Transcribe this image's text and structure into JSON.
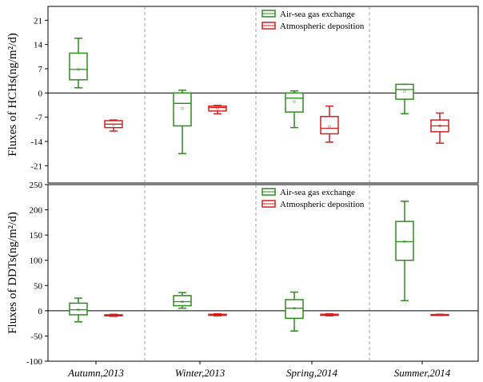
{
  "chart_data": [
    {
      "type": "box",
      "ylabel": "Fluxes of HCHs(ng/m²/d)",
      "ylim": [
        -26,
        25
      ],
      "yticks": [
        21,
        14,
        7,
        0,
        -7,
        -14,
        -21
      ],
      "categories": [
        "Autumn,2013",
        "Winter,2013",
        "Spring,2014",
        "Summer,2014"
      ],
      "legend_position": "top-center",
      "series": [
        {
          "name": "Air-sea gas exchange",
          "color": "#2e8b1e",
          "boxes": [
            {
              "whislo": 1.5,
              "q1": 3.8,
              "med": 6.8,
              "mean": 6.8,
              "q3": 11.5,
              "whishi": 15.8
            },
            {
              "whislo": -17.5,
              "q1": -9.5,
              "med": -3.0,
              "mean": -4.5,
              "q3": 0.0,
              "whishi": 0.8
            },
            {
              "whislo": -10.0,
              "q1": -5.5,
              "med": -1.5,
              "mean": -2.5,
              "q3": 0.0,
              "whishi": 0.6
            },
            {
              "whislo": -6.0,
              "q1": -1.8,
              "med": 1.0,
              "mean": 0.5,
              "q3": 2.5,
              "whishi": 2.5
            }
          ]
        },
        {
          "name": "Atmospheric deposition",
          "color": "#d41e1e",
          "boxes": [
            {
              "whislo": -11.0,
              "q1": -10.0,
              "med": -9.0,
              "mean": -9.2,
              "q3": -8.0,
              "whishi": -7.8
            },
            {
              "whislo": -6.0,
              "q1": -5.2,
              "med": -4.2,
              "mean": -4.4,
              "q3": -3.8,
              "whishi": -3.6
            },
            {
              "whislo": -14.2,
              "q1": -11.8,
              "med": -10.2,
              "mean": -9.8,
              "q3": -6.8,
              "whishi": -3.8
            },
            {
              "whislo": -14.5,
              "q1": -11.2,
              "med": -9.5,
              "mean": -9.5,
              "q3": -7.8,
              "whishi": -5.8
            }
          ]
        }
      ]
    },
    {
      "type": "box",
      "ylabel": "Fluxes of DDTs(ng/m²/d)",
      "ylim": [
        -100,
        250
      ],
      "yticks": [
        250,
        200,
        150,
        100,
        50,
        0,
        -50,
        -100
      ],
      "categories": [
        "Autumn,2013",
        "Winter,2013",
        "Spring,2014",
        "Summer,2014"
      ],
      "legend_position": "top-center",
      "series": [
        {
          "name": "Air-sea gas exchange",
          "color": "#2e8b1e",
          "boxes": [
            {
              "whislo": -22,
              "q1": -8,
              "med": 2,
              "mean": 2,
              "q3": 15,
              "whishi": 25
            },
            {
              "whislo": 5,
              "q1": 10,
              "med": 18,
              "mean": 18,
              "q3": 30,
              "whishi": 36
            },
            {
              "whislo": -40,
              "q1": -15,
              "med": 5,
              "mean": 5,
              "q3": 22,
              "whishi": 37
            },
            {
              "whislo": 20,
              "q1": 100,
              "med": 137,
              "mean": 137,
              "q3": 177,
              "whishi": 217
            }
          ]
        },
        {
          "name": "Atmospheric deposition",
          "color": "#d41e1e",
          "boxes": [
            {
              "whislo": -11,
              "q1": -10,
              "med": -9,
              "mean": -9,
              "q3": -8,
              "whishi": -7
            },
            {
              "whislo": -10,
              "q1": -9,
              "med": -8,
              "mean": -8,
              "q3": -7,
              "whishi": -6
            },
            {
              "whislo": -10,
              "q1": -9,
              "med": -8,
              "mean": -8,
              "q3": -7,
              "whishi": -6
            },
            {
              "whislo": -9,
              "q1": -8.5,
              "med": -8,
              "mean": -8,
              "q3": -7.5,
              "whishi": -7
            }
          ]
        }
      ]
    }
  ]
}
